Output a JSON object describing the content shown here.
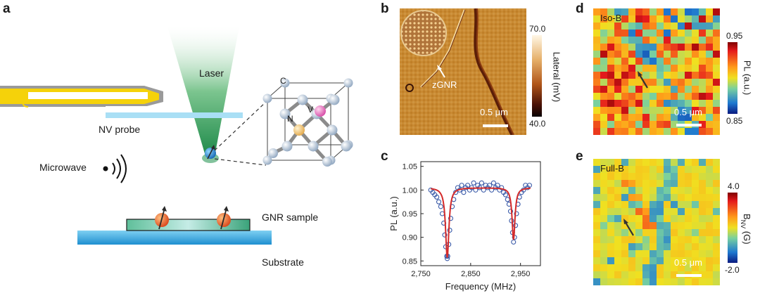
{
  "panels": {
    "a": {
      "label": "a",
      "laser": "Laser",
      "nv_probe": "NV probe",
      "microwave": "Microwave",
      "gnr_sample": "GNR sample",
      "substrate": "Substrate",
      "atom_c": "C",
      "atom_v": "V",
      "atom_n": "N"
    },
    "b": {
      "label": "b",
      "zgnr": "zGNR",
      "scalebar": "0.5 μm",
      "colorbar_max": "70.0",
      "colorbar_min": "40.0",
      "colorbar_title": "Lateral (mV)"
    },
    "c": {
      "label": "c"
    },
    "d": {
      "label": "d",
      "tag": "Iso-B",
      "scalebar": "0.5 μm",
      "colorbar_max": "0.95",
      "colorbar_min": "0.85",
      "colorbar_title": "PL (a.u.)"
    },
    "e": {
      "label": "e",
      "tag": "Full-B",
      "scalebar": "0.5 μm",
      "colorbar_max": "4.0",
      "colorbar_min": "-2.0",
      "colorbar_title_main": "B",
      "colorbar_title_sub": "NV",
      "colorbar_title_unit": " (G)"
    }
  },
  "colors": {
    "afm_base": "#c9892e",
    "laser": "#2e9a5a",
    "probe_yellow": "#f5d20a",
    "substrate": "#3fa9e0",
    "fit_line": "#d42a2a",
    "data_marker": "#3a5aa8"
  },
  "chart_data": {
    "type": "scatter",
    "xlabel": "Frequency (MHz)",
    "ylabel": "PL (a.u.)",
    "xlim": [
      2750,
      2990
    ],
    "ylim": [
      0.84,
      1.06
    ],
    "xticks": [
      2750,
      2850,
      2950
    ],
    "xtick_labels": [
      "2,750",
      "2,850",
      "2,950"
    ],
    "yticks": [
      0.85,
      0.9,
      0.95,
      1.0,
      1.05
    ],
    "ytick_labels": [
      "0.85",
      "0.90",
      "0.95",
      "1.00",
      "1.05"
    ],
    "dips": [
      {
        "center": 2803,
        "depth": 0.148,
        "width": 8
      },
      {
        "center": 2936,
        "depth": 0.11,
        "width": 7
      }
    ],
    "series": [
      {
        "values_x": [
          2770,
          2774,
          2778,
          2782,
          2786,
          2790,
          2793,
          2796,
          2798,
          2800,
          2802,
          2803,
          2804,
          2806,
          2808,
          2810,
          2813,
          2816,
          2820,
          2824,
          2828,
          2832,
          2836,
          2840,
          2844,
          2848,
          2852,
          2856,
          2860,
          2864,
          2868,
          2872,
          2876,
          2880,
          2884,
          2888,
          2892,
          2896,
          2900,
          2904,
          2908,
          2912,
          2916,
          2920,
          2924,
          2927,
          2930,
          2932,
          2934,
          2936,
          2938,
          2940,
          2942,
          2945,
          2948,
          2952,
          2956,
          2960,
          2964,
          2968
        ],
        "values_y": [
          1.0,
          0.995,
          0.99,
          0.985,
          0.975,
          0.965,
          0.95,
          0.93,
          0.905,
          0.88,
          0.86,
          0.855,
          0.86,
          0.885,
          0.915,
          0.94,
          0.965,
          0.98,
          0.995,
          1.005,
          1.0,
          1.01,
          0.995,
          1.005,
          1.01,
          1.0,
          1.005,
          1.015,
          1.0,
          1.01,
          1.005,
          1.015,
          1.0,
          1.01,
          1.005,
          1.01,
          1.0,
          1.015,
          1.005,
          1.01,
          1.0,
          1.005,
          0.995,
          0.99,
          0.98,
          0.97,
          0.955,
          0.935,
          0.91,
          0.89,
          0.9,
          0.925,
          0.95,
          0.97,
          0.985,
          0.995,
          1.0,
          1.01,
          1.005,
          1.01
        ]
      }
    ]
  }
}
